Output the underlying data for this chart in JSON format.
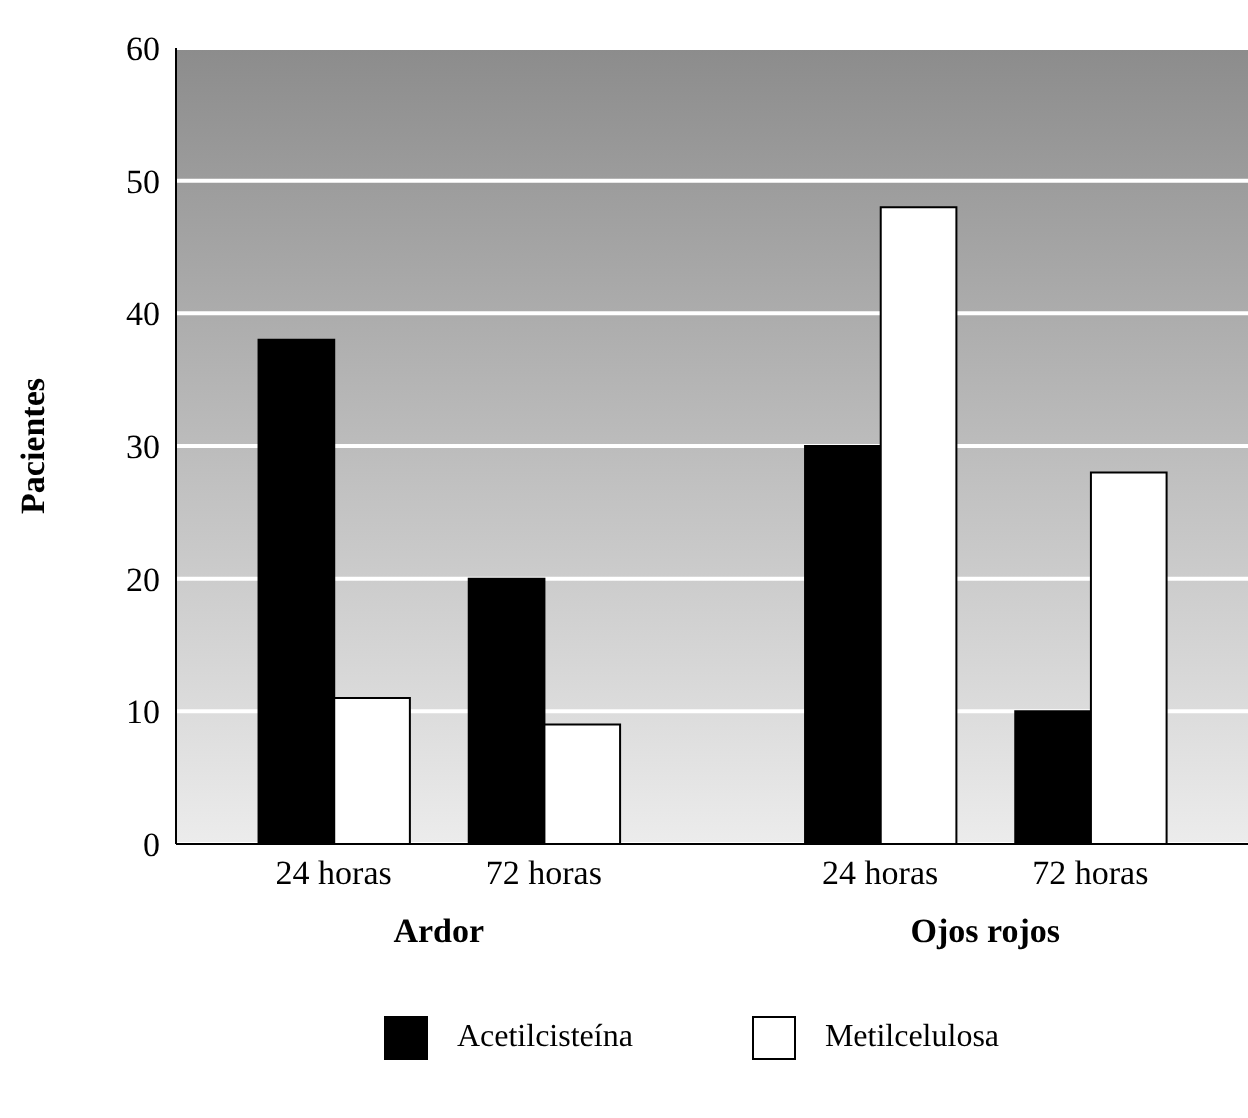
{
  "chart_data": {
    "type": "bar",
    "categories": [
      "24 horas",
      "72 horas",
      "24 horas",
      "72 horas"
    ],
    "series": [
      {
        "name": "Acetilcisteína",
        "color": "#000000",
        "values": [
          38,
          20,
          30,
          10
        ]
      },
      {
        "name": "Metilcelulosa",
        "color": "#ffffff",
        "values": [
          11,
          9,
          48,
          28
        ]
      }
    ],
    "ylabel": "Pacientes",
    "ylim": [
      0,
      60
    ],
    "yticks": [
      0,
      10,
      20,
      30,
      40,
      50,
      60
    ],
    "grid": "y",
    "legend": "bottom",
    "annotations": [
      "Ardor",
      "Ojos rojos"
    ]
  }
}
